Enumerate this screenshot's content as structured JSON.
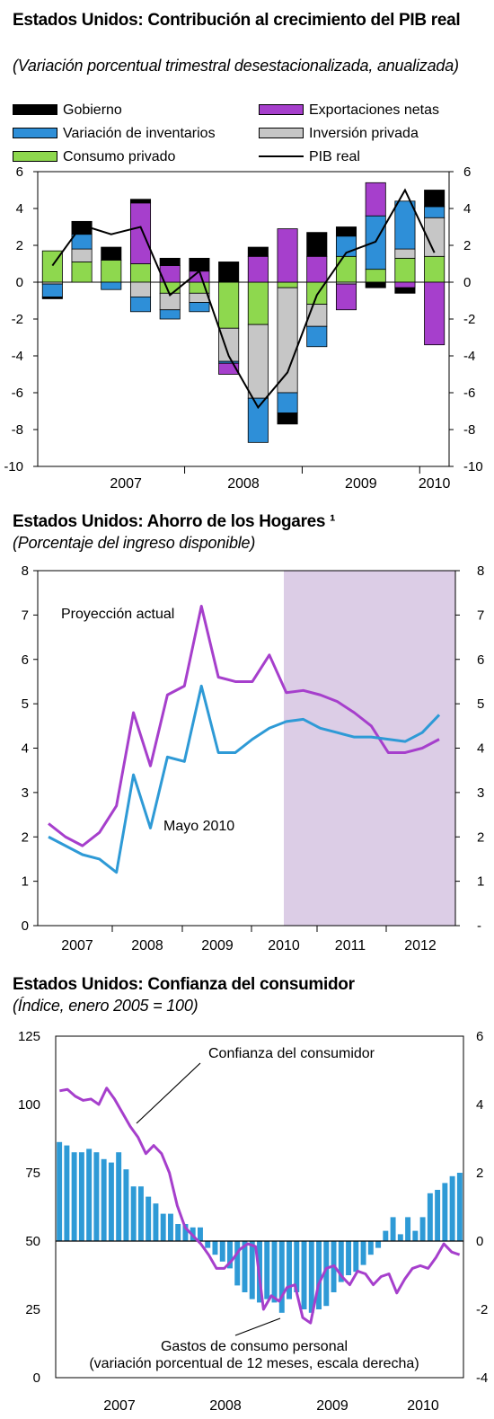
{
  "charts": [
    {
      "title": "Estados Unidos: Contribución al crecimiento del PIB real",
      "subtitle": "(Variación porcentual trimestral desestacionalizada, anualizada)"
    },
    {
      "title": "Estados Unidos: Ahorro de los Hogares ¹",
      "subtitle": "(Porcentaje del ingreso disponible)"
    },
    {
      "title": "Estados Unidos: Confianza del consumidor",
      "subtitle": "(Índice, enero 2005 = 100)"
    }
  ],
  "colors": {
    "gobierno": "#000000",
    "inventarios": "#2e8fd8",
    "consumo": "#8ed84e",
    "exportaciones": "#a63fcc",
    "inversion": "#c6c6c6",
    "pib": "#000000",
    "purple_line": "#a63fcc",
    "blue_line": "#2e9ad6",
    "projection_shade": "#dccde6"
  },
  "chart_data": [
    {
      "type": "bar",
      "stacked": true,
      "quarters": [
        "2006Q4",
        "2007Q1",
        "2007Q2",
        "2007Q3",
        "2007Q4",
        "2008Q1",
        "2008Q2",
        "2008Q3",
        "2008Q4",
        "2009Q1",
        "2009Q2",
        "2009Q3",
        "2009Q4",
        "2010Q1"
      ],
      "year_labels": [
        "2007",
        "2008",
        "2009",
        "2010"
      ],
      "ylim": [
        -10,
        6
      ],
      "yticks_left": [
        "6",
        "4",
        "2",
        "0",
        "-2",
        "-4",
        "-6",
        "-8",
        "-10"
      ],
      "yticks_right": [
        "6",
        "4",
        "2",
        "0",
        "-2",
        "-4",
        "-6",
        "-8",
        "-10"
      ],
      "legend": [
        "Gobierno",
        "Exportaciones netas",
        "Variación de inventarios",
        "Inversión privada",
        "Consumo privado",
        "PIB real"
      ],
      "series": [
        {
          "name": "Consumo privado",
          "key": "consumo",
          "values": [
            1.7,
            1.1,
            1.2,
            1.0,
            -0.6,
            -0.6,
            -2.5,
            -2.3,
            -0.3,
            -1.2,
            1.4,
            0.7,
            1.3,
            1.4
          ]
        },
        {
          "name": "Inversión privada",
          "key": "inversion",
          "values": [
            -0.1,
            0.7,
            0.0,
            -0.8,
            -0.9,
            -0.5,
            -1.8,
            -4.0,
            -5.7,
            -1.2,
            -0.1,
            0.0,
            0.5,
            2.1
          ]
        },
        {
          "name": "Variación de inventarios",
          "key": "inventarios",
          "values": [
            -0.7,
            0.8,
            -0.4,
            -0.8,
            -0.5,
            -0.5,
            -0.1,
            -2.4,
            -1.1,
            -1.1,
            1.1,
            2.9,
            2.6,
            0.6
          ]
        },
        {
          "name": "Exportaciones netas",
          "key": "exportaciones",
          "values": [
            0.0,
            0.0,
            0.0,
            3.3,
            0.9,
            0.6,
            -0.6,
            1.4,
            2.9,
            1.4,
            -1.4,
            1.8,
            -0.3,
            -3.4
          ]
        },
        {
          "name": "Gobierno",
          "key": "gobierno",
          "values": [
            -0.1,
            0.7,
            0.7,
            0.2,
            0.4,
            0.7,
            1.1,
            0.5,
            -0.6,
            1.3,
            0.5,
            -0.3,
            -0.3,
            0.9
          ]
        }
      ],
      "pib_real": [
        0.9,
        3.1,
        2.6,
        3.0,
        -0.7,
        0.6,
        -4.0,
        -6.8,
        -4.9,
        -0.7,
        1.6,
        2.2,
        5.0,
        1.6
      ]
    },
    {
      "type": "line",
      "x_start": "2006Q4",
      "x_labels": [
        "2007",
        "2008",
        "2009",
        "2010",
        "2011",
        "2012"
      ],
      "ylim": [
        0,
        8
      ],
      "yticks_left": [
        "0",
        "1",
        "2",
        "3",
        "4",
        "5",
        "6",
        "7",
        "8"
      ],
      "yticks_right": [
        "-",
        "1",
        "2",
        "3",
        "4",
        "5",
        "6",
        "7",
        "8"
      ],
      "projection_start": "2010Q1",
      "annotations": [
        "Proyección actual",
        "Mayo 2010"
      ],
      "series": [
        {
          "name": "Proyección actual",
          "key": "purple_line",
          "values": [
            2.3,
            2.0,
            1.8,
            2.1,
            2.7,
            4.8,
            3.6,
            5.2,
            5.4,
            7.2,
            5.6,
            5.5,
            5.5,
            6.1,
            5.25,
            5.3,
            5.2,
            5.05,
            4.8,
            4.5,
            3.9,
            3.9,
            4.0,
            4.2
          ]
        },
        {
          "name": "Mayo 2010",
          "key": "blue_line",
          "values": [
            2.0,
            1.8,
            1.6,
            1.5,
            1.2,
            3.4,
            2.2,
            3.8,
            3.7,
            5.4,
            3.9,
            3.9,
            4.2,
            4.45,
            4.6,
            4.65,
            4.45,
            4.35,
            4.25,
            4.25,
            4.2,
            4.15,
            4.35,
            4.75
          ]
        }
      ]
    },
    {
      "type": "line+bar",
      "x_labels": [
        "2007",
        "2008",
        "2009",
        "2010"
      ],
      "ylim_left": [
        0,
        125
      ],
      "ylim_right": [
        -4,
        6
      ],
      "yticks_left": [
        "125",
        "100",
        "75",
        "50",
        "25",
        "0"
      ],
      "yticks_right": [
        "6",
        "4",
        "2",
        "0",
        "-2",
        "-4"
      ],
      "annotations": [
        "Confianza del consumidor",
        "Gastos de consumo personal",
        "(variación porcentual de 12 meses, escala derecha)"
      ],
      "confianza": [
        105,
        105.5,
        103,
        101.5,
        102,
        100,
        106,
        102,
        97,
        92,
        88,
        82,
        85,
        82,
        75,
        63,
        55,
        52,
        49,
        45,
        40,
        40,
        43,
        47,
        49,
        48,
        25,
        30,
        28,
        33,
        34,
        22,
        20,
        34,
        40,
        41,
        37,
        34,
        39,
        38,
        34,
        37,
        38,
        31,
        36,
        40,
        41,
        40,
        44,
        49,
        46,
        45
      ],
      "gastos": [
        2.9,
        2.8,
        2.6,
        2.6,
        2.7,
        2.6,
        2.4,
        2.3,
        2.6,
        2.1,
        1.6,
        1.6,
        1.3,
        1.1,
        0.8,
        0.8,
        0.5,
        0.5,
        0.4,
        0.4,
        -0.2,
        -0.4,
        -0.6,
        -0.8,
        -1.3,
        -1.5,
        -1.7,
        -1.8,
        -1.7,
        -1.8,
        -2.1,
        -1.7,
        -1.5,
        -2.0,
        -2.1,
        -2.0,
        -1.9,
        -1.5,
        -1.2,
        -1.0,
        -0.9,
        -0.7,
        -0.4,
        -0.2,
        0.3,
        0.7,
        0.2,
        0.7,
        0.3,
        0.7,
        1.4,
        1.5,
        1.7,
        1.9,
        2.0
      ]
    }
  ]
}
